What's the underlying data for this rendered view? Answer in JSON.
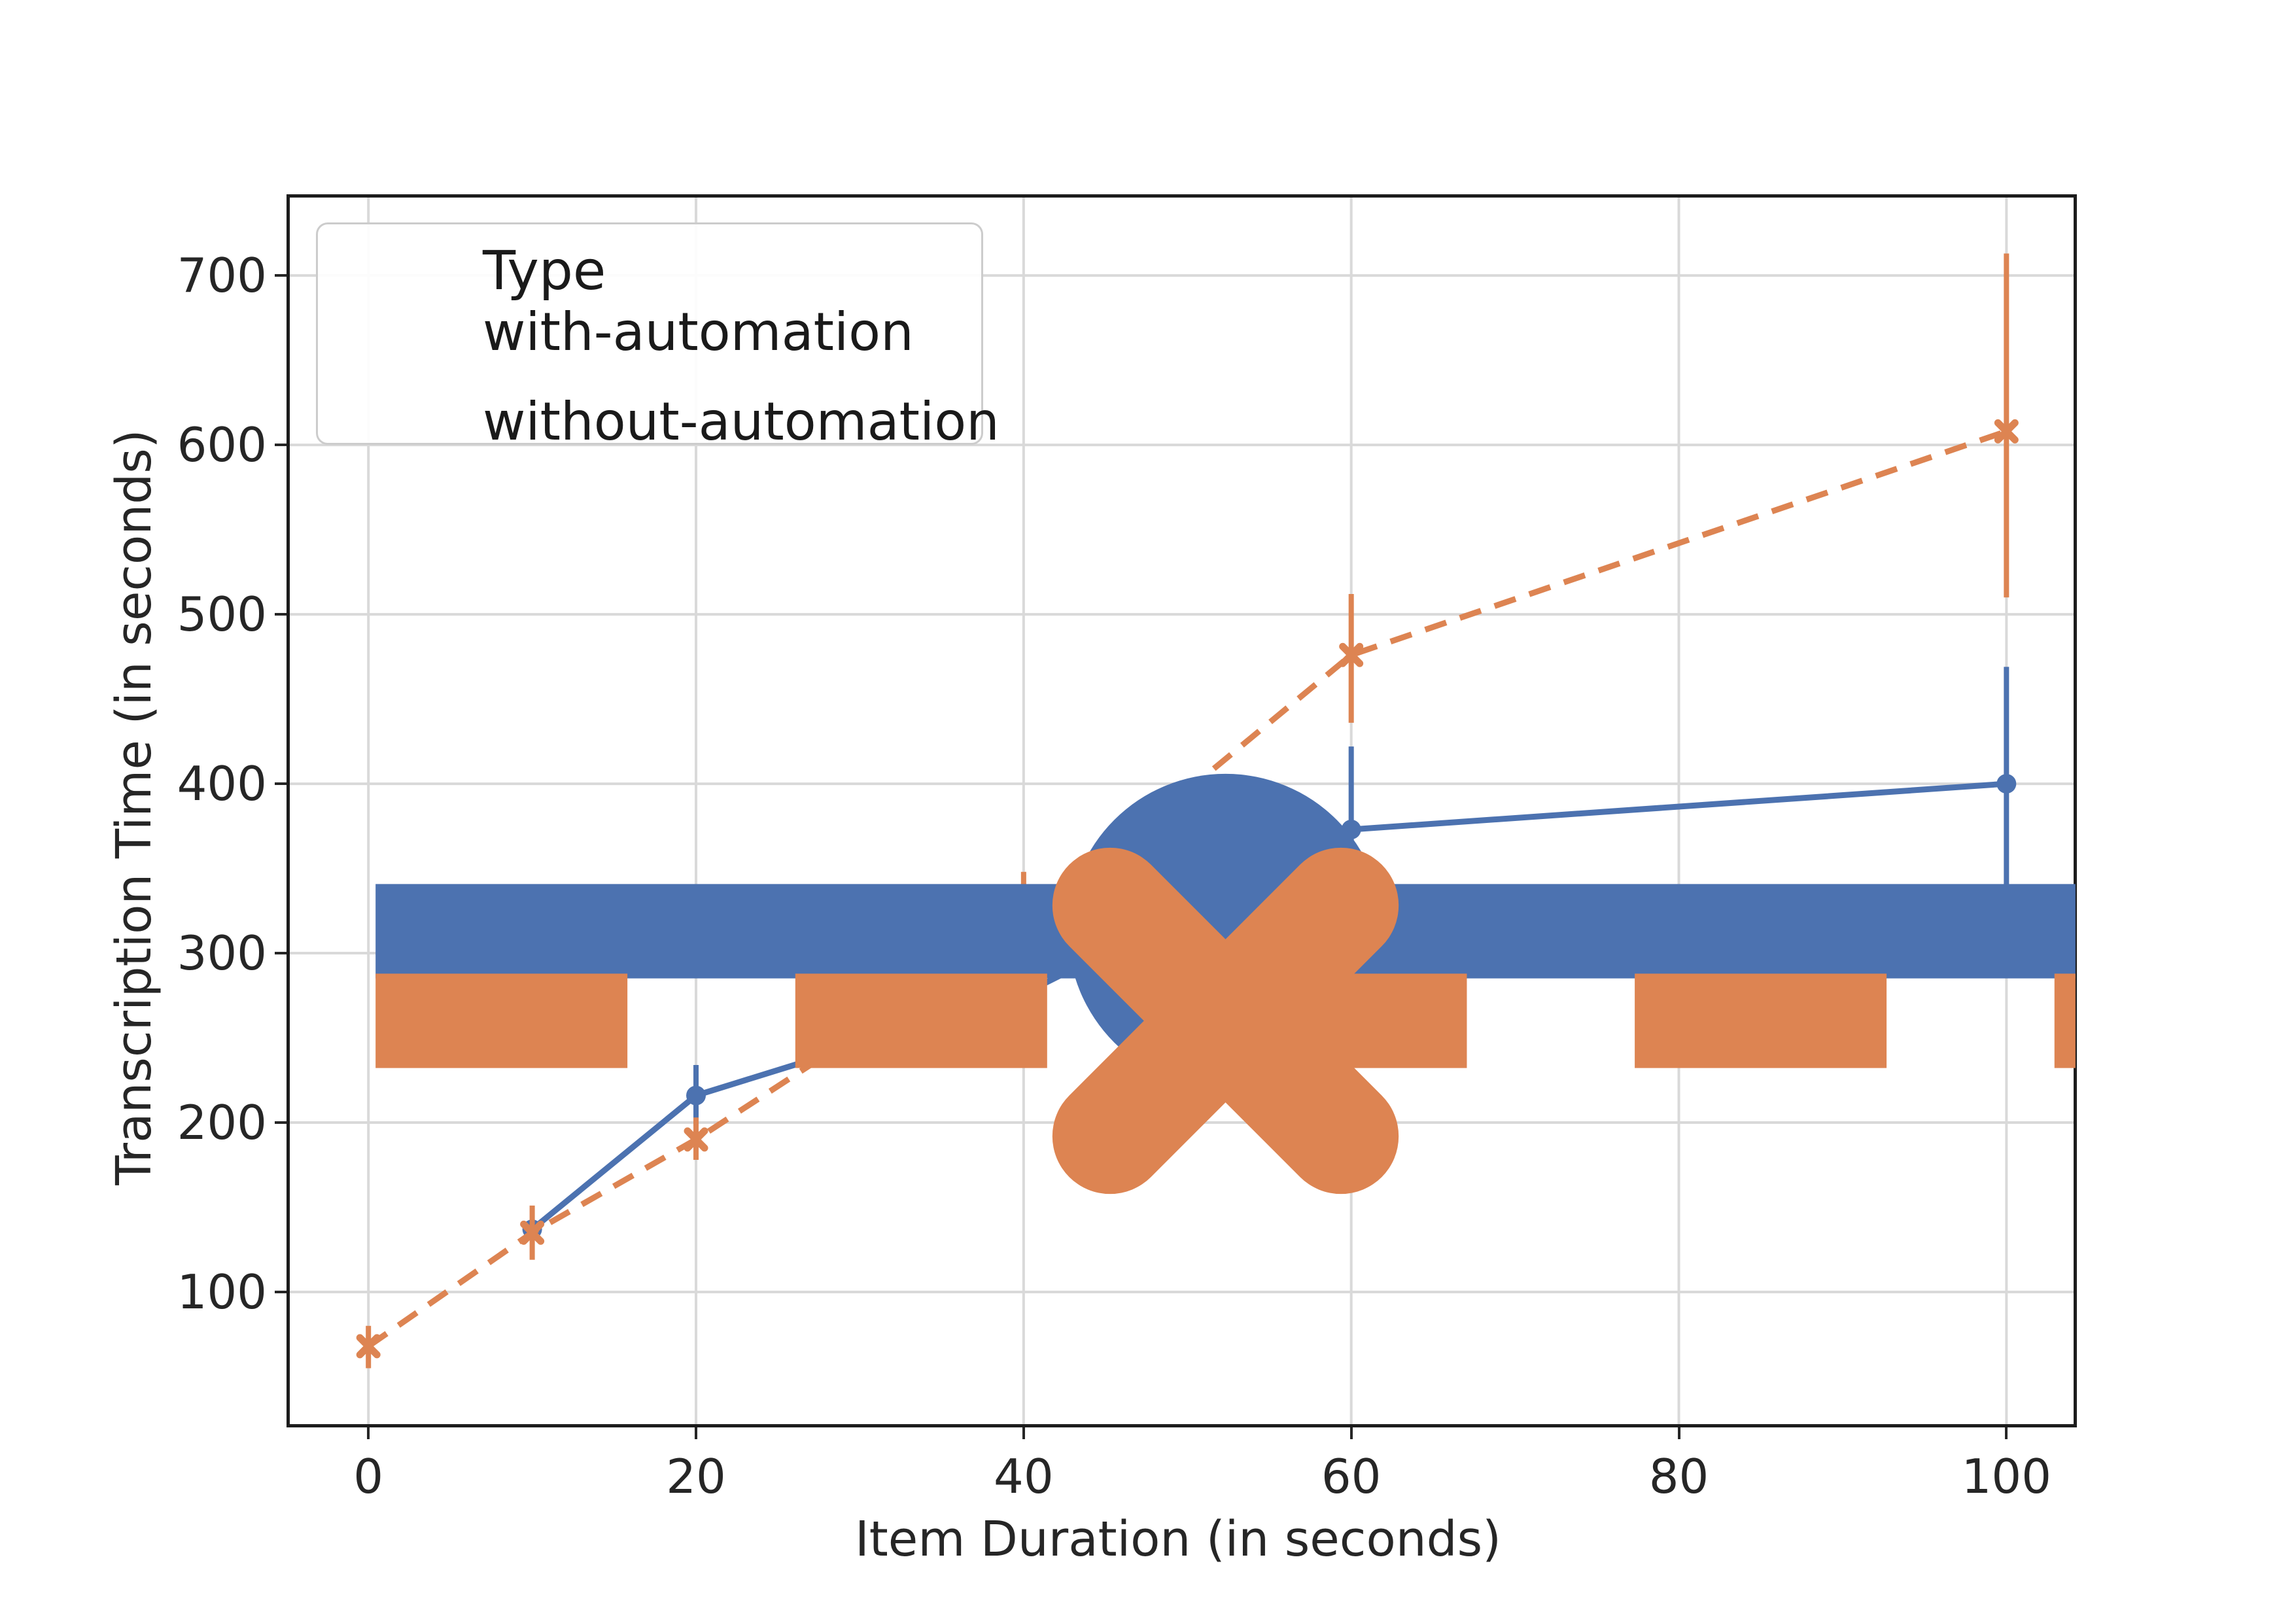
{
  "style": {
    "accent_blue": "#4C72B0",
    "accent_orange": "#DD8452",
    "grid_color": "#d9d9d9",
    "spine_color": "#1c1c1c",
    "text_color": "#262626",
    "legend_border": "#cccccc"
  },
  "chart_data": {
    "type": "line",
    "title": "",
    "xlabel": "Item Duration (in seconds)",
    "ylabel": "Transcription Time (in seconds)",
    "x_ticks": [
      0,
      20,
      40,
      60,
      80,
      100
    ],
    "y_ticks": [
      100,
      200,
      300,
      400,
      500,
      600,
      700
    ],
    "xlim": [
      -4.8,
      104.1
    ],
    "ylim": [
      22,
      746
    ],
    "grid": true,
    "legend": {
      "title": "Type",
      "position": "upper-left"
    },
    "series": [
      {
        "name": "with-automation",
        "color": "#4C72B0",
        "line_style": "solid",
        "marker": "circle",
        "x": [
          10,
          20,
          40,
          60,
          100
        ],
        "y": [
          137,
          216,
          276,
          373,
          400
        ],
        "err_low": [
          null,
          198,
          250,
          326,
          337
        ],
        "err_high": [
          null,
          234,
          302,
          422,
          469
        ]
      },
      {
        "name": "without-automation",
        "color": "#DD8452",
        "line_style": "dashed",
        "marker": "x",
        "x": [
          0,
          10,
          20,
          40,
          60,
          100
        ],
        "y": [
          68,
          135,
          190,
          316,
          476,
          608
        ],
        "err_low": [
          55,
          119,
          178,
          282,
          436,
          510
        ],
        "err_high": [
          80,
          151,
          203,
          348,
          512,
          713
        ]
      }
    ]
  }
}
